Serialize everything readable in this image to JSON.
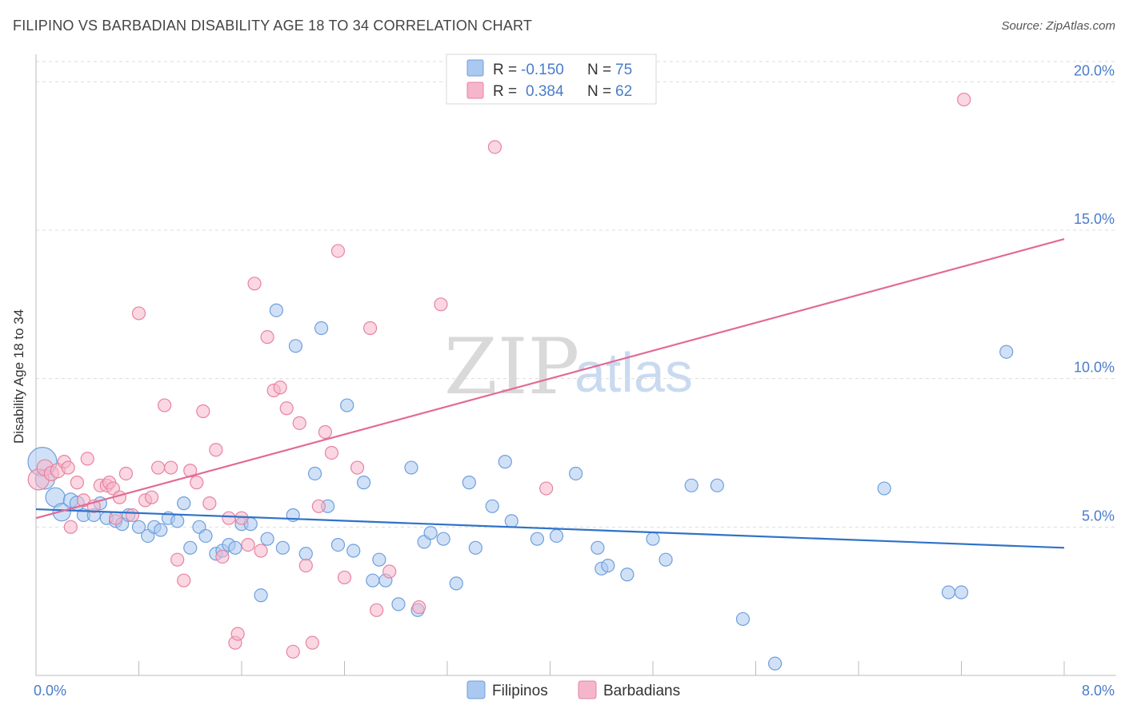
{
  "header": {
    "title": "FILIPINO VS BARBADIAN DISABILITY AGE 18 TO 34 CORRELATION CHART",
    "source": "Source: ZipAtlas.com"
  },
  "watermark": {
    "part1": "ZIP",
    "part2": "atlas"
  },
  "colors": {
    "filipino_fill": "#aac8f0",
    "filipino_stroke": "#6f9fdc",
    "filipino_line": "#2f72c9",
    "barbadian_fill": "#f5b6cb",
    "barbadian_stroke": "#e8839f",
    "barbadian_line": "#e26a94",
    "grid": "#dcdcdc",
    "axis_text": "#4a7cc9"
  },
  "legend": {
    "rows": [
      {
        "r_label": "R = ",
        "r_value": "-0.150",
        "n_label": "N = ",
        "n_value": "75"
      },
      {
        "r_label": "R = ",
        "r_value": "0.384",
        "n_label": "N = ",
        "n_value": "62"
      }
    ]
  },
  "chart_data": {
    "type": "scatter",
    "title": "FILIPINO VS BARBADIAN DISABILITY AGE 18 TO 34 CORRELATION CHART",
    "xlabel": "",
    "ylabel": "Disability Age 18 to 34",
    "xlim": [
      0,
      8
    ],
    "ylim": [
      0,
      20.6
    ],
    "x_tick_labels": [
      "0.0%",
      "8.0%"
    ],
    "y_ticks": [
      5,
      10,
      15,
      20
    ],
    "y_tick_labels": [
      "5.0%",
      "10.0%",
      "15.0%",
      "20.0%"
    ],
    "grid": true,
    "legend_position": "top-center",
    "series": [
      {
        "name": "Filipinos",
        "r": -0.15,
        "n": 75,
        "trend": [
          [
            0.0,
            5.6
          ],
          [
            8.0,
            4.3
          ]
        ],
        "points": [
          [
            0.05,
            7.2,
            18
          ],
          [
            0.07,
            6.6,
            12
          ],
          [
            0.15,
            6.0,
            12
          ],
          [
            0.2,
            5.5,
            11
          ],
          [
            0.27,
            5.9,
            9
          ],
          [
            0.32,
            5.8,
            9
          ],
          [
            0.37,
            5.4,
            8
          ],
          [
            0.45,
            5.4,
            8
          ],
          [
            0.5,
            5.8,
            8
          ],
          [
            0.55,
            5.3,
            8
          ],
          [
            0.62,
            5.2,
            8
          ],
          [
            0.67,
            5.1,
            8
          ],
          [
            0.72,
            5.4,
            8
          ],
          [
            0.8,
            5.0,
            8
          ],
          [
            0.87,
            4.7,
            8
          ],
          [
            0.92,
            5.0,
            8
          ],
          [
            0.97,
            4.9,
            8
          ],
          [
            1.03,
            5.3,
            8
          ],
          [
            1.1,
            5.2,
            8
          ],
          [
            1.15,
            5.8,
            8
          ],
          [
            1.2,
            4.3,
            8
          ],
          [
            1.27,
            5.0,
            8
          ],
          [
            1.32,
            4.7,
            8
          ],
          [
            1.4,
            4.1,
            8
          ],
          [
            1.45,
            4.2,
            8
          ],
          [
            1.5,
            4.4,
            8
          ],
          [
            1.55,
            4.3,
            8
          ],
          [
            1.6,
            5.1,
            8
          ],
          [
            1.67,
            5.1,
            8
          ],
          [
            1.75,
            2.7,
            8
          ],
          [
            1.8,
            4.6,
            8
          ],
          [
            1.87,
            12.3,
            8
          ],
          [
            1.92,
            4.3,
            8
          ],
          [
            2.0,
            5.4,
            8
          ],
          [
            2.02,
            11.1,
            8
          ],
          [
            2.1,
            4.1,
            8
          ],
          [
            2.17,
            6.8,
            8
          ],
          [
            2.22,
            11.7,
            8
          ],
          [
            2.27,
            5.7,
            8
          ],
          [
            2.35,
            4.4,
            8
          ],
          [
            2.42,
            9.1,
            8
          ],
          [
            2.47,
            4.2,
            8
          ],
          [
            2.55,
            6.5,
            8
          ],
          [
            2.62,
            3.2,
            8
          ],
          [
            2.67,
            3.9,
            8
          ],
          [
            2.72,
            3.2,
            8
          ],
          [
            2.82,
            2.4,
            8
          ],
          [
            2.92,
            7.0,
            8
          ],
          [
            2.97,
            2.2,
            8
          ],
          [
            3.02,
            4.5,
            8
          ],
          [
            3.07,
            4.8,
            8
          ],
          [
            3.17,
            4.6,
            8
          ],
          [
            3.27,
            3.1,
            8
          ],
          [
            3.37,
            6.5,
            8
          ],
          [
            3.42,
            4.3,
            8
          ],
          [
            3.55,
            5.7,
            8
          ],
          [
            3.65,
            7.2,
            8
          ],
          [
            3.7,
            5.2,
            8
          ],
          [
            3.9,
            4.6,
            8
          ],
          [
            4.05,
            4.7,
            8
          ],
          [
            4.2,
            6.8,
            8
          ],
          [
            4.37,
            4.3,
            8
          ],
          [
            4.4,
            3.6,
            8
          ],
          [
            4.45,
            3.7,
            8
          ],
          [
            4.6,
            3.4,
            8
          ],
          [
            4.8,
            4.6,
            8
          ],
          [
            4.9,
            3.9,
            8
          ],
          [
            5.1,
            6.4,
            8
          ],
          [
            5.3,
            6.4,
            8
          ],
          [
            5.5,
            1.9,
            8
          ],
          [
            5.75,
            0.4,
            8
          ],
          [
            6.6,
            6.3,
            8
          ],
          [
            7.1,
            2.8,
            8
          ],
          [
            7.2,
            2.8,
            8
          ],
          [
            7.55,
            10.9,
            8
          ]
        ]
      },
      {
        "name": "Barbadians",
        "r": 0.384,
        "n": 62,
        "trend": [
          [
            0.0,
            5.3
          ],
          [
            8.0,
            14.7
          ]
        ],
        "points": [
          [
            0.02,
            6.6,
            13
          ],
          [
            0.07,
            7.0,
            10
          ],
          [
            0.12,
            6.8,
            9
          ],
          [
            0.17,
            6.9,
            9
          ],
          [
            0.22,
            7.2,
            8
          ],
          [
            0.25,
            7.0,
            8
          ],
          [
            0.27,
            5.0,
            8
          ],
          [
            0.32,
            6.5,
            8
          ],
          [
            0.37,
            5.9,
            8
          ],
          [
            0.4,
            7.3,
            8
          ],
          [
            0.45,
            5.7,
            8
          ],
          [
            0.5,
            6.4,
            8
          ],
          [
            0.55,
            6.4,
            8
          ],
          [
            0.57,
            6.5,
            8
          ],
          [
            0.6,
            6.3,
            8
          ],
          [
            0.62,
            5.3,
            8
          ],
          [
            0.65,
            6.0,
            8
          ],
          [
            0.7,
            6.8,
            8
          ],
          [
            0.75,
            5.4,
            8
          ],
          [
            0.8,
            12.2,
            8
          ],
          [
            0.85,
            5.9,
            8
          ],
          [
            0.9,
            6.0,
            8
          ],
          [
            0.95,
            7.0,
            8
          ],
          [
            1.0,
            9.1,
            8
          ],
          [
            1.05,
            7.0,
            8
          ],
          [
            1.1,
            3.9,
            8
          ],
          [
            1.15,
            3.2,
            8
          ],
          [
            1.2,
            6.9,
            8
          ],
          [
            1.25,
            6.5,
            8
          ],
          [
            1.3,
            8.9,
            8
          ],
          [
            1.35,
            5.8,
            8
          ],
          [
            1.4,
            7.6,
            8
          ],
          [
            1.45,
            4.0,
            8
          ],
          [
            1.5,
            5.3,
            8
          ],
          [
            1.55,
            1.1,
            8
          ],
          [
            1.57,
            1.4,
            8
          ],
          [
            1.6,
            5.3,
            8
          ],
          [
            1.65,
            4.4,
            8
          ],
          [
            1.7,
            13.2,
            8
          ],
          [
            1.75,
            4.2,
            8
          ],
          [
            1.8,
            11.4,
            8
          ],
          [
            1.85,
            9.6,
            8
          ],
          [
            1.9,
            9.7,
            8
          ],
          [
            1.95,
            9.0,
            8
          ],
          [
            2.0,
            0.8,
            8
          ],
          [
            2.05,
            8.5,
            8
          ],
          [
            2.1,
            3.7,
            8
          ],
          [
            2.15,
            1.1,
            8
          ],
          [
            2.2,
            5.7,
            8
          ],
          [
            2.25,
            8.2,
            8
          ],
          [
            2.3,
            7.5,
            8
          ],
          [
            2.35,
            14.3,
            8
          ],
          [
            2.4,
            3.3,
            8
          ],
          [
            2.5,
            7.0,
            8
          ],
          [
            2.6,
            11.7,
            8
          ],
          [
            2.65,
            2.2,
            8
          ],
          [
            2.75,
            3.5,
            8
          ],
          [
            2.98,
            2.3,
            8
          ],
          [
            3.15,
            12.5,
            8
          ],
          [
            3.57,
            17.8,
            8
          ],
          [
            3.97,
            6.3,
            8
          ],
          [
            7.22,
            19.4,
            8
          ]
        ]
      }
    ]
  },
  "bottom_legend": {
    "items": [
      "Filipinos",
      "Barbadians"
    ]
  }
}
